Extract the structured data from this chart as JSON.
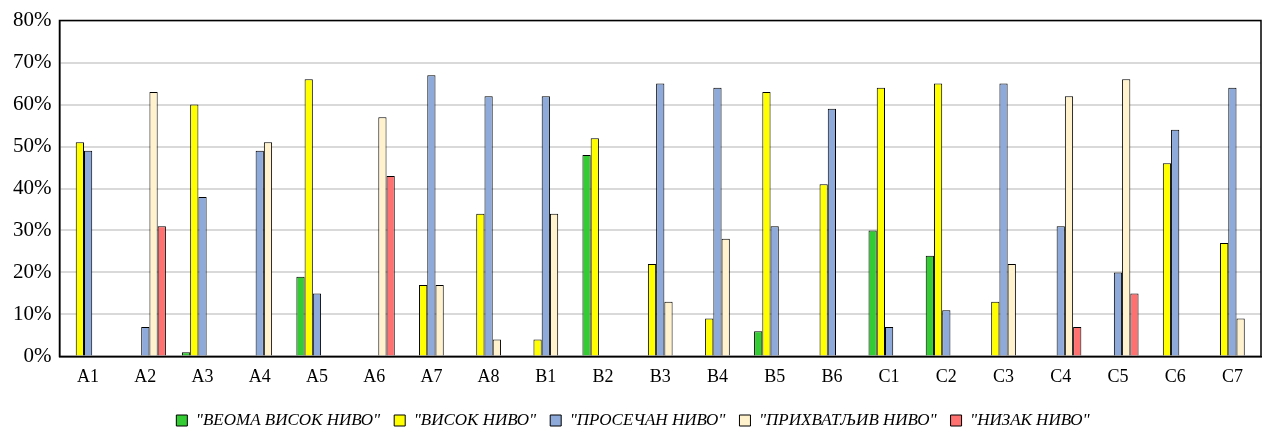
{
  "chart_data": {
    "type": "bar",
    "categories": [
      "A1",
      "A2",
      "A3",
      "A4",
      "A5",
      "A6",
      "A7",
      "A8",
      "B1",
      "B2",
      "B3",
      "B4",
      "B5",
      "B6",
      "C1",
      "C2",
      "C3",
      "C4",
      "C5",
      "C6",
      "C7"
    ],
    "series": [
      {
        "name": "\"ВЕОМА ВИСОК НИВО\"",
        "color": "#33cc33",
        "values": [
          0,
          0,
          1,
          0,
          19,
          0,
          0,
          0,
          0,
          48,
          0,
          0,
          6,
          0,
          30,
          24,
          0,
          0,
          0,
          0,
          0
        ]
      },
      {
        "name": "\"ВИСОК НИВО\"",
        "color": "#ffff00",
        "values": [
          51,
          0,
          60,
          0,
          66,
          0,
          17,
          34,
          4,
          52,
          22,
          9,
          63,
          41,
          64,
          65,
          13,
          0,
          0,
          46,
          27
        ]
      },
      {
        "name": "\"ПРОСЕЧАН НИВО\"",
        "color": "#8eaadb",
        "values": [
          49,
          7,
          38,
          49,
          15,
          0,
          67,
          62,
          62,
          0,
          65,
          64,
          31,
          59,
          7,
          11,
          65,
          31,
          20,
          54,
          64
        ]
      },
      {
        "name": "\"ПРИХВАТЉИВ НИВО\"",
        "color": "#fff2cc",
        "values": [
          0,
          63,
          0,
          51,
          0,
          57,
          17,
          4,
          34,
          0,
          13,
          28,
          0,
          0,
          0,
          0,
          22,
          62,
          66,
          0,
          9
        ]
      },
      {
        "name": "\"НИЗАК НИВО\"",
        "color": "#ff7070",
        "values": [
          0,
          31,
          0,
          0,
          0,
          43,
          0,
          0,
          0,
          0,
          0,
          0,
          0,
          0,
          0,
          0,
          0,
          7,
          15,
          0,
          0
        ]
      }
    ],
    "ylim": [
      0,
      80
    ],
    "yticks": [
      {
        "value": 0,
        "label": "0%"
      },
      {
        "value": 10,
        "label": "10%"
      },
      {
        "value": 20,
        "label": "20%"
      },
      {
        "value": 30,
        "label": "30%"
      },
      {
        "value": 40,
        "label": "40%"
      },
      {
        "value": 50,
        "label": "50%"
      },
      {
        "value": 60,
        "label": "60%"
      },
      {
        "value": 70,
        "label": "70%"
      },
      {
        "value": 80,
        "label": "80%"
      }
    ],
    "grid": "y",
    "legend": "bottom"
  }
}
